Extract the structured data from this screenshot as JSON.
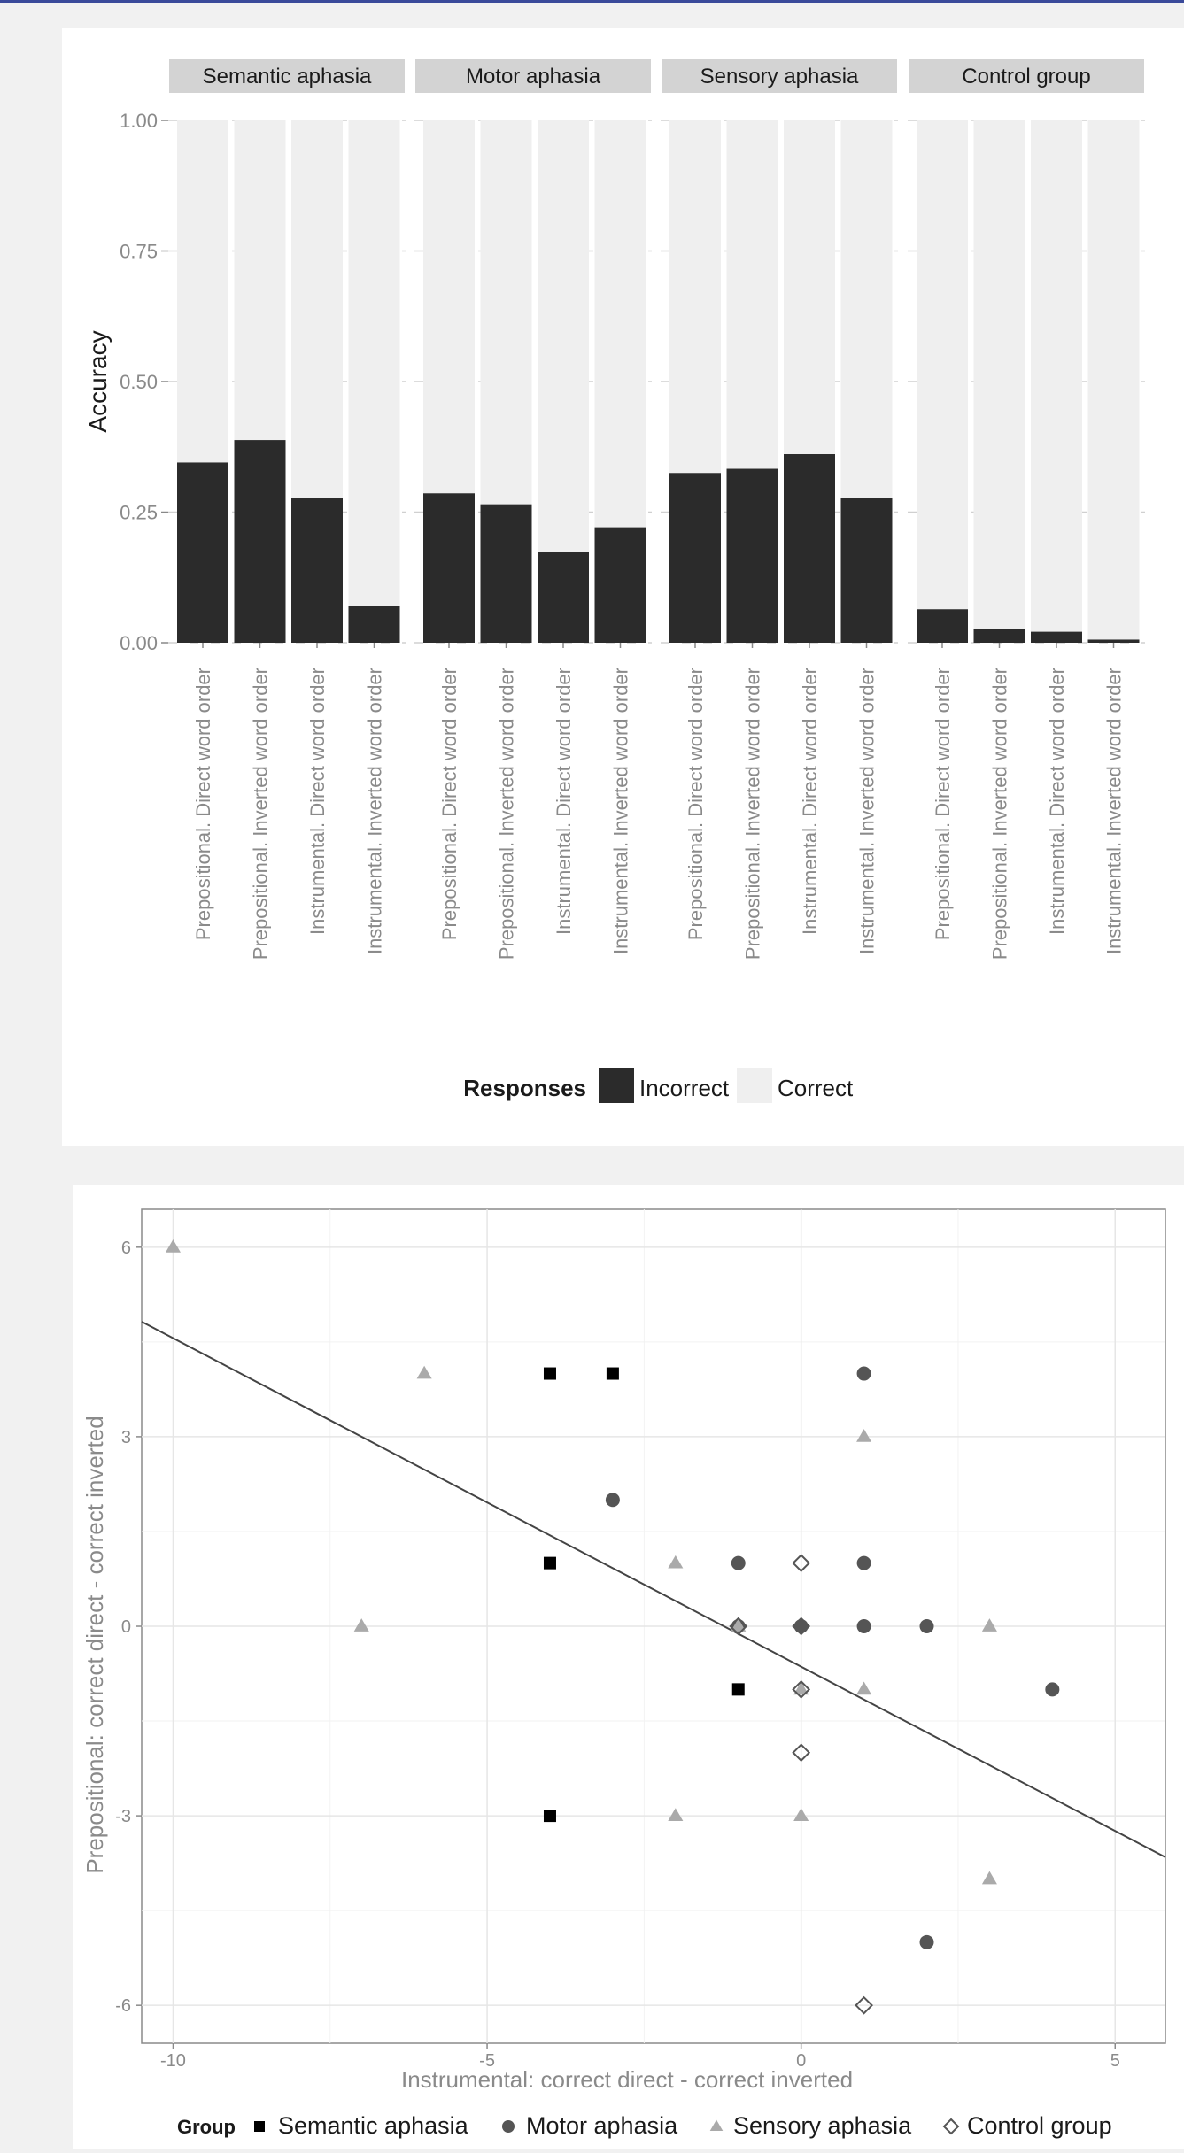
{
  "bar_chart": {
    "facets": [
      "Semantic aphasia",
      "Motor aphasia",
      "Sensory aphasia",
      "Control group"
    ],
    "y_axis_label": "Accuracy",
    "y_ticks": [
      "0.00",
      "0.25",
      "0.50",
      "0.75",
      "1.00"
    ],
    "x_category_labels": [
      "Prepositional. Direct word order",
      "Prepositional. Inverted word order",
      "Instrumental. Direct word order",
      "Instrumental. Inverted word order"
    ],
    "legend": {
      "title": "Responses",
      "items": [
        {
          "label": "Incorrect",
          "color": "#2b2b2b"
        },
        {
          "label": "Correct",
          "color": "#efefef"
        }
      ]
    }
  },
  "scatter_plot": {
    "x_axis_label": "Instrumental: correct direct - correct inverted",
    "y_axis_label": "Prepositional: correct direct - correct inverted",
    "x_ticks": [
      "-10",
      "-5",
      "0",
      "5"
    ],
    "y_ticks": [
      "6",
      "3",
      "0",
      "-3",
      "-6"
    ],
    "legend": {
      "title": "Group",
      "items": [
        {
          "label": "Semantic aphasia",
          "shape": "square-filled",
          "color": "#000000"
        },
        {
          "label": "Motor aphasia",
          "shape": "circle-filled",
          "color": "#555555"
        },
        {
          "label": "Sensory aphasia",
          "shape": "triangle-filled",
          "color": "#aaaaaa"
        },
        {
          "label": "Control group",
          "shape": "diamond-open",
          "color": "#555555"
        }
      ]
    }
  },
  "chart_data": [
    {
      "type": "bar",
      "stacked": true,
      "facets": [
        "Semantic aphasia",
        "Motor aphasia",
        "Sensory aphasia",
        "Control group"
      ],
      "categories": [
        "Prepositional. Direct word order",
        "Prepositional. Inverted word order",
        "Instrumental. Direct word order",
        "Instrumental. Inverted word order"
      ],
      "series": [
        {
          "name": "Incorrect",
          "color": "#2b2b2b",
          "values": [
            [
              0.345,
              0.388,
              0.277,
              0.07
            ],
            [
              0.286,
              0.265,
              0.173,
              0.221
            ],
            [
              0.325,
              0.333,
              0.361,
              0.277
            ],
            [
              0.064,
              0.027,
              0.021,
              0.006
            ]
          ]
        },
        {
          "name": "Correct",
          "color": "#efefef",
          "values": [
            [
              0.655,
              0.612,
              0.723,
              0.93
            ],
            [
              0.714,
              0.735,
              0.827,
              0.779
            ],
            [
              0.675,
              0.667,
              0.639,
              0.723
            ],
            [
              0.936,
              0.973,
              0.979,
              0.994
            ]
          ]
        }
      ],
      "ylabel": "Accuracy",
      "ylim": [
        0,
        1
      ],
      "yticks": [
        0,
        0.25,
        0.5,
        0.75,
        1
      ],
      "legend_position": "bottom",
      "grid": true
    },
    {
      "type": "scatter",
      "xlabel": "Instrumental: correct direct - correct inverted",
      "ylabel": "Prepositional: correct direct - correct inverted",
      "xlim": [
        -10.5,
        5.8
      ],
      "ylim": [
        -6.6,
        6.6
      ],
      "xticks": [
        -10,
        -5,
        0,
        5
      ],
      "yticks": [
        -6,
        -3,
        0,
        3,
        6
      ],
      "grid": true,
      "legend_position": "bottom",
      "series": [
        {
          "name": "Semantic aphasia",
          "shape": "square",
          "color": "#000000",
          "points": [
            [
              -4,
              4
            ],
            [
              -3,
              4
            ],
            [
              -4,
              1
            ],
            [
              -1,
              -1
            ],
            [
              -4,
              -3
            ]
          ]
        },
        {
          "name": "Motor aphasia",
          "shape": "circle",
          "color": "#555555",
          "points": [
            [
              1,
              4
            ],
            [
              -3,
              2
            ],
            [
              -1,
              1
            ],
            [
              1,
              1
            ],
            [
              -1,
              0
            ],
            [
              0,
              0
            ],
            [
              1,
              0
            ],
            [
              2,
              0
            ],
            [
              4,
              -1
            ],
            [
              2,
              -5
            ]
          ]
        },
        {
          "name": "Sensory aphasia",
          "shape": "triangle",
          "color": "#aaaaaa",
          "points": [
            [
              -10,
              6
            ],
            [
              -6,
              4
            ],
            [
              1,
              3
            ],
            [
              -2,
              1
            ],
            [
              -7,
              0
            ],
            [
              -1,
              0
            ],
            [
              3,
              0
            ],
            [
              0,
              -1
            ],
            [
              1,
              -1
            ],
            [
              -2,
              -3
            ],
            [
              0,
              -3
            ],
            [
              3,
              -4
            ]
          ]
        },
        {
          "name": "Control group",
          "shape": "diamond-open",
          "color": "#555555",
          "points": [
            [
              0,
              1
            ],
            [
              -1,
              0
            ],
            [
              0,
              0
            ],
            [
              0,
              -1
            ],
            [
              0,
              -2
            ],
            [
              1,
              -6
            ]
          ]
        }
      ],
      "regression_line": {
        "intercept": -0.64,
        "slope": -0.52
      }
    }
  ]
}
